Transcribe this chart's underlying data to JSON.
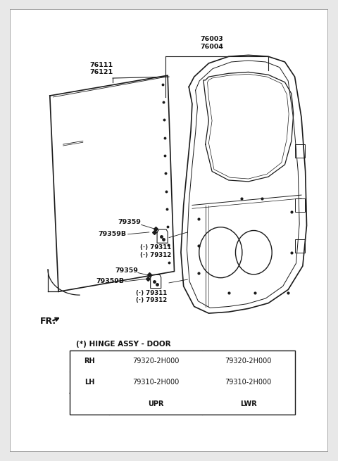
{
  "bg_color": "#e8e8e8",
  "inner_bg": "#ffffff",
  "border_color": "#999999",
  "line_color": "#1a1a1a",
  "text_color": "#111111",
  "title": "(*) HINGE ASSY - DOOR",
  "table_headers": [
    "",
    "UPR",
    "LWR"
  ],
  "table_rows": [
    [
      "LH",
      "79310-2H000",
      "79310-2H000"
    ],
    [
      "RH",
      "79320-2H000",
      "79320-2H000"
    ]
  ],
  "label_76003": "76003\n76004",
  "label_76111": "76111\n76121",
  "label_79359_u": "79359",
  "label_79359B_u": "79359B",
  "label_79311_u": "(·) 79311\n(·) 79312",
  "label_79359_l": "79359",
  "label_79359B_l": "79359B",
  "label_79311_l": "(·) 79311\n(·) 79312",
  "label_fr": "FR."
}
